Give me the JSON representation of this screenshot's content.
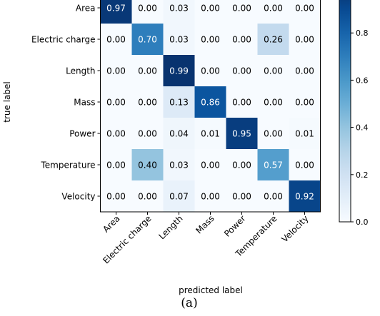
{
  "chart_data": {
    "type": "heatmap",
    "title": "",
    "xlabel": "predicted label",
    "ylabel": "true label",
    "caption": "(a)",
    "rows": [
      "Area",
      "Electric charge",
      "Length",
      "Mass",
      "Power",
      "Temperature",
      "Velocity"
    ],
    "columns": [
      "Area",
      "Electric charge",
      "Length",
      "Mass",
      "Power",
      "Temperature",
      "Velocity"
    ],
    "values": [
      [
        0.97,
        0.0,
        0.03,
        0.0,
        0.0,
        0.0,
        0.0
      ],
      [
        0.0,
        0.7,
        0.03,
        0.0,
        0.0,
        0.26,
        0.0
      ],
      [
        0.0,
        0.0,
        0.99,
        0.0,
        0.0,
        0.0,
        0.0
      ],
      [
        0.0,
        0.0,
        0.13,
        0.86,
        0.0,
        0.0,
        0.0
      ],
      [
        0.0,
        0.0,
        0.04,
        0.01,
        0.95,
        0.0,
        0.01
      ],
      [
        0.0,
        0.4,
        0.03,
        0.0,
        0.0,
        0.57,
        0.0
      ],
      [
        0.0,
        0.0,
        0.07,
        0.0,
        0.0,
        0.0,
        0.92
      ]
    ],
    "colormap": "Blues",
    "vmin": 0,
    "vmax": 1,
    "colorbar_ticks": [
      "0.0",
      "0.2",
      "0.4",
      "0.6",
      "0.8"
    ],
    "colorbar_tick_values": [
      0,
      0.2,
      0.4,
      0.6,
      0.8
    ]
  }
}
